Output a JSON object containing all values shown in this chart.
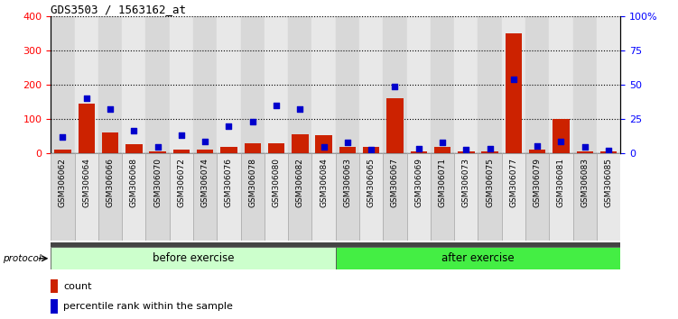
{
  "title": "GDS3503 / 1563162_at",
  "categories": [
    "GSM306062",
    "GSM306064",
    "GSM306066",
    "GSM306068",
    "GSM306070",
    "GSM306072",
    "GSM306074",
    "GSM306076",
    "GSM306078",
    "GSM306080",
    "GSM306082",
    "GSM306084",
    "GSM306063",
    "GSM306065",
    "GSM306067",
    "GSM306069",
    "GSM306071",
    "GSM306073",
    "GSM306075",
    "GSM306077",
    "GSM306079",
    "GSM306081",
    "GSM306083",
    "GSM306085"
  ],
  "count_values": [
    10,
    145,
    60,
    25,
    5,
    10,
    10,
    18,
    28,
    28,
    55,
    52,
    18,
    18,
    160,
    5,
    18,
    5,
    5,
    350,
    10,
    100,
    5,
    5
  ],
  "percentile_values": [
    48,
    160,
    128,
    65,
    18,
    52,
    35,
    78,
    93,
    138,
    128,
    18,
    32,
    10,
    195,
    12,
    32,
    10,
    12,
    215,
    22,
    35,
    18,
    8
  ],
  "before_exercise_count": 12,
  "after_exercise_count": 12,
  "bar_color": "#cc2200",
  "dot_color": "#0000cc",
  "col_bg_even": "#d8d8d8",
  "col_bg_odd": "#e8e8e8",
  "before_bg": "#ccffcc",
  "after_bg": "#44ee44",
  "separator_color": "#333333",
  "protocol_label": "protocol",
  "before_label": "before exercise",
  "after_label": "after exercise",
  "legend_count": "count",
  "legend_percentile": "percentile rank within the sample",
  "ylim_left": [
    0,
    400
  ],
  "ylim_right": [
    0,
    100
  ],
  "yticks_left": [
    0,
    100,
    200,
    300,
    400
  ],
  "yticks_right": [
    0,
    25,
    50,
    75,
    100
  ],
  "ytick_labels_right": [
    "0",
    "25",
    "50",
    "75",
    "100%"
  ]
}
